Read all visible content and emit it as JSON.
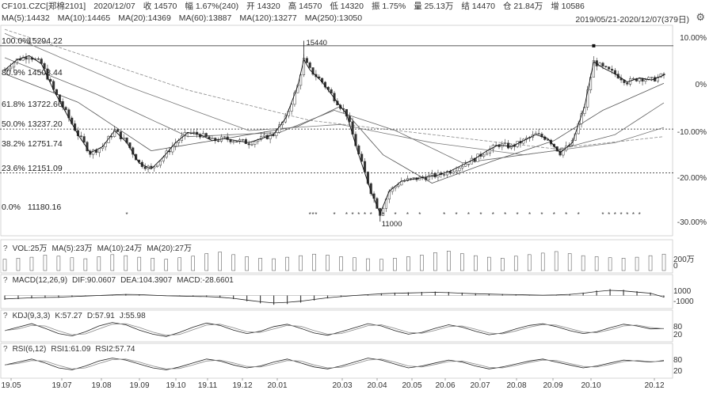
{
  "header": {
    "line1": [
      "CF101.CZC[郑棉2101]",
      "2020/12/07",
      "收 14570",
      "幅 1.67%(240)",
      "开 14320",
      "高 14570",
      "低 14320",
      "振 1.75%",
      "量 25.13万",
      "结 14470",
      "仓 21.84万",
      "增 10586"
    ],
    "line2": [
      "MA(5):14432",
      "MA(10):14465",
      "MA(20):14369",
      "MA(60):13887",
      "MA(120):13277",
      "MA(250):13050"
    ],
    "date_range": "2019/05/21-2020/12/07(379日)",
    "settings_icon": "gear-icon"
  },
  "fib_levels": [
    {
      "pct": "100.0%",
      "value": "15294.22"
    },
    {
      "pct": "80.9%",
      "value": "14508.44"
    },
    {
      "pct": "61.8%",
      "value": "13722.66"
    },
    {
      "pct": "50.0%",
      "value": "13237.20"
    },
    {
      "pct": "38.2%",
      "value": "12751.74"
    },
    {
      "pct": "23.6%",
      "value": "12151.09"
    },
    {
      "pct": "0.0%",
      "value": "11180.16"
    }
  ],
  "annotations": {
    "high": "15440",
    "low": "11000"
  },
  "right_axis": [
    "10.00%",
    "0%",
    "-10.00%",
    "-20.00%",
    "-30.00%"
  ],
  "subcharts": {
    "vol": {
      "title": [
        "VOL:25万",
        "MA(5):23万",
        "MA(10):24万",
        "MA(20):27万"
      ],
      "axis": [
        "200万",
        "0"
      ]
    },
    "macd": {
      "title": [
        "MACD(12,26,9)",
        "DIF:90.0607",
        "DEA:104.3907",
        "MACD:-28.6601"
      ],
      "axis": [
        "1000",
        "-1000"
      ]
    },
    "kdj": {
      "title": [
        "KDJ(9,3,3)",
        "K:57.27",
        "D:57.91",
        "J:55.98"
      ],
      "axis": [
        "80",
        "20"
      ]
    },
    "rsi": {
      "title": [
        "RSI(6,12)",
        "RSI1:61.09",
        "RSI2:57.74"
      ],
      "axis": [
        "80",
        "20"
      ]
    }
  },
  "chart_data": {
    "type": "line",
    "title": "CF101.CZC[郑棉2101]",
    "x_ticks": [
      "19.05",
      "19.07",
      "19.08",
      "19.09",
      "19.10",
      "19.11",
      "19.12",
      "20.01",
      "20.03",
      "20.04",
      "20.05",
      "20.06",
      "20.07",
      "20.08",
      "20.09",
      "20.10",
      "20.12"
    ],
    "ylim": [
      10600,
      15800
    ],
    "price_path": [
      [
        0,
        14700
      ],
      [
        4,
        14950
      ],
      [
        8,
        15050
      ],
      [
        12,
        14850
      ],
      [
        16,
        14200
      ],
      [
        20,
        13650
      ],
      [
        24,
        13100
      ],
      [
        28,
        12650
      ],
      [
        32,
        12800
      ],
      [
        36,
        13200
      ],
      [
        40,
        12900
      ],
      [
        44,
        12400
      ],
      [
        48,
        12250
      ],
      [
        52,
        12550
      ],
      [
        56,
        12900
      ],
      [
        60,
        13150
      ],
      [
        64,
        13100
      ],
      [
        68,
        12950
      ],
      [
        72,
        13000
      ],
      [
        76,
        12950
      ],
      [
        80,
        12900
      ],
      [
        84,
        13000
      ],
      [
        88,
        13100
      ],
      [
        92,
        13500
      ],
      [
        96,
        14300
      ],
      [
        98,
        14950
      ],
      [
        100,
        14700
      ],
      [
        104,
        14400
      ],
      [
        108,
        14000
      ],
      [
        112,
        13600
      ],
      [
        116,
        12600
      ],
      [
        120,
        11700
      ],
      [
        123,
        11150
      ],
      [
        126,
        11700
      ],
      [
        130,
        11950
      ],
      [
        134,
        12000
      ],
      [
        138,
        12050
      ],
      [
        142,
        12100
      ],
      [
        146,
        12200
      ],
      [
        150,
        12350
      ],
      [
        154,
        12500
      ],
      [
        158,
        12700
      ],
      [
        162,
        12850
      ],
      [
        166,
        12800
      ],
      [
        170,
        12950
      ],
      [
        174,
        13100
      ],
      [
        178,
        13000
      ],
      [
        182,
        12650
      ],
      [
        186,
        12900
      ],
      [
        190,
        13800
      ],
      [
        193,
        14900
      ],
      [
        196,
        14750
      ],
      [
        200,
        14600
      ],
      [
        204,
        14400
      ],
      [
        208,
        14500
      ],
      [
        212,
        14450
      ],
      [
        216,
        14570
      ]
    ],
    "ma_lines": [
      {
        "name": "MA(20)",
        "path": [
          [
            0,
            14600
          ],
          [
            24,
            13900
          ],
          [
            48,
            12700
          ],
          [
            72,
            13000
          ],
          [
            96,
            13300
          ],
          [
            110,
            13800
          ],
          [
            124,
            12600
          ],
          [
            140,
            11900
          ],
          [
            160,
            12450
          ],
          [
            180,
            12950
          ],
          [
            196,
            13700
          ],
          [
            216,
            14369
          ]
        ]
      },
      {
        "name": "MA(60)",
        "path": [
          [
            0,
            15000
          ],
          [
            30,
            14100
          ],
          [
            60,
            13050
          ],
          [
            90,
            13150
          ],
          [
            108,
            13700
          ],
          [
            128,
            13200
          ],
          [
            150,
            12400
          ],
          [
            180,
            12700
          ],
          [
            200,
            13100
          ],
          [
            216,
            13887
          ]
        ]
      },
      {
        "name": "MA(120)",
        "path": [
          [
            0,
            15600
          ],
          [
            40,
            14300
          ],
          [
            80,
            13200
          ],
          [
            110,
            13350
          ],
          [
            140,
            12900
          ],
          [
            170,
            12600
          ],
          [
            200,
            12900
          ],
          [
            216,
            13277
          ]
        ]
      },
      {
        "name": "MA(250)",
        "path": [
          [
            0,
            15700
          ],
          [
            60,
            14200
          ],
          [
            100,
            13450
          ],
          [
            140,
            13100
          ],
          [
            180,
            12750
          ],
          [
            216,
            13050
          ]
        ]
      }
    ],
    "volume": [
      22,
      24,
      26,
      30,
      28,
      25,
      23,
      27,
      31,
      29,
      26,
      24,
      22,
      25,
      28,
      33,
      36,
      31,
      27,
      24,
      23,
      26,
      29,
      32,
      30,
      27,
      25,
      23,
      22,
      24,
      27,
      30,
      35,
      38,
      33,
      29,
      26,
      24,
      28,
      31,
      34,
      37,
      33,
      29,
      27,
      25,
      24,
      26,
      29,
      32
    ],
    "macd": [
      -60,
      -50,
      -40,
      -35,
      -30,
      -20,
      -10,
      0,
      10,
      20,
      15,
      5,
      -5,
      -10,
      -15,
      -20,
      -30,
      -50,
      -80,
      -110,
      -130,
      -120,
      -100,
      -70,
      -40,
      -20,
      0,
      15,
      30,
      40,
      45,
      50,
      55,
      50,
      40,
      30,
      25,
      20,
      15,
      10,
      5,
      10,
      20,
      40,
      70,
      90,
      80,
      60,
      40,
      -28
    ],
    "kdj": [
      50,
      62,
      74,
      58,
      40,
      32,
      46,
      66,
      78,
      70,
      52,
      38,
      30,
      44,
      62,
      76,
      68,
      52,
      40,
      48,
      64,
      72,
      58,
      42,
      34,
      46,
      60,
      74,
      66,
      50,
      38,
      44,
      58,
      70,
      62,
      48,
      36,
      42,
      56,
      68,
      74,
      64,
      50,
      40,
      46,
      60,
      72,
      66,
      56,
      57
    ],
    "rsi": [
      52,
      58,
      64,
      56,
      46,
      42,
      50,
      60,
      66,
      62,
      54,
      46,
      42,
      48,
      56,
      64,
      60,
      52,
      46,
      50,
      58,
      64,
      56,
      48,
      44,
      50,
      58,
      66,
      62,
      54,
      46,
      50,
      56,
      62,
      58,
      50,
      44,
      48,
      54,
      60,
      64,
      58,
      52,
      46,
      50,
      56,
      62,
      60,
      58,
      61
    ]
  }
}
